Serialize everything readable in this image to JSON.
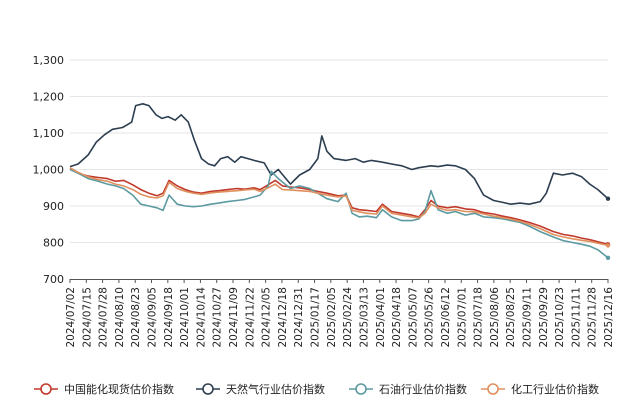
{
  "chart_data": {
    "type": "line",
    "title": "",
    "xlabel": "",
    "ylabel": "",
    "ylim": [
      700,
      1300
    ],
    "yticks": [
      700,
      800,
      900,
      1000,
      1100,
      1200,
      1300
    ],
    "ytick_labels": [
      "700",
      "800",
      "900",
      "1,000",
      "1,100",
      "1,200",
      "1,300"
    ],
    "grid": "horizontal",
    "legend_position": "bottom",
    "x_range": [
      "2024/07/02",
      "2025/12/16"
    ],
    "x_tick_labels": [
      "2024/07/02",
      "2024/07/15",
      "2024/07/28",
      "2024/08/10",
      "2024/08/23",
      "2024/09/05",
      "2024/09/18",
      "2024/10/01",
      "2024/10/14",
      "2024/10/27",
      "2024/11/09",
      "2024/11/22",
      "2024/12/05",
      "2024/12/18",
      "2024/12/31",
      "2025/01/17",
      "2025/02/05",
      "2025/02/24",
      "2025/03/13",
      "2025/04/01",
      "2025/04/18",
      "2025/05/07",
      "2025/05/26",
      "2025/06/12",
      "2025/07/01",
      "2025/07/18",
      "2025/08/06",
      "2025/08/25",
      "2025/09/11",
      "2025/09/29",
      "2025/10/23",
      "2025/11/11",
      "2025/11/28",
      "2025/12/16"
    ],
    "series": [
      {
        "name": "中国能化现货估价指数",
        "color": "#c0392b",
        "points": [
          [
            "2024/07/02",
            1002
          ],
          [
            "2024/07/10",
            990
          ],
          [
            "2024/07/20",
            982
          ],
          [
            "2024/07/30",
            978
          ],
          [
            "2024/08/08",
            975
          ],
          [
            "2024/08/16",
            968
          ],
          [
            "2024/08/24",
            970
          ],
          [
            "2024/09/02",
            958
          ],
          [
            "2024/09/10",
            945
          ],
          [
            "2024/09/18",
            935
          ],
          [
            "2024/09/26",
            928
          ],
          [
            "2024/10/02",
            935
          ],
          [
            "2024/10/08",
            970
          ],
          [
            "2024/10/16",
            955
          ],
          [
            "2024/10/24",
            945
          ],
          [
            "2024/11/01",
            938
          ],
          [
            "2024/11/09",
            935
          ],
          [
            "2024/11/18",
            940
          ],
          [
            "2024/11/26",
            942
          ],
          [
            "2024/12/05",
            945
          ],
          [
            "2024/12/14",
            948
          ],
          [
            "2024/12/22",
            946
          ],
          [
            "2024/12/31",
            950
          ],
          [
            "2025/01/06",
            945
          ],
          [
            "2025/01/14",
            958
          ],
          [
            "2025/01/21",
            970
          ],
          [
            "2025/01/28",
            955
          ],
          [
            "2025/02/05",
            952
          ],
          [
            "2025/02/14",
            950
          ],
          [
            "2025/02/24",
            945
          ],
          [
            "2025/03/04",
            940
          ],
          [
            "2025/03/13",
            935
          ],
          [
            "2025/03/24",
            928
          ],
          [
            "2025/04/01",
            930
          ],
          [
            "2025/04/07",
            895
          ],
          [
            "2025/04/14",
            890
          ],
          [
            "2025/04/22",
            888
          ],
          [
            "2025/05/01",
            885
          ],
          [
            "2025/05/07",
            905
          ],
          [
            "2025/05/16",
            885
          ],
          [
            "2025/05/26",
            880
          ],
          [
            "2025/06/05",
            875
          ],
          [
            "2025/06/12",
            870
          ],
          [
            "2025/06/18",
            890
          ],
          [
            "2025/06/24",
            915
          ],
          [
            "2025/07/01",
            900
          ],
          [
            "2025/07/10",
            895
          ],
          [
            "2025/07/18",
            898
          ],
          [
            "2025/07/28",
            892
          ],
          [
            "2025/08/06",
            890
          ],
          [
            "2025/08/15",
            882
          ],
          [
            "2025/08/25",
            878
          ],
          [
            "2025/09/03",
            872
          ],
          [
            "2025/09/11",
            868
          ],
          [
            "2025/09/20",
            862
          ],
          [
            "2025/09/29",
            855
          ],
          [
            "2025/10/10",
            845
          ],
          [
            "2025/10/23",
            830
          ],
          [
            "2025/11/02",
            822
          ],
          [
            "2025/11/11",
            818
          ],
          [
            "2025/11/20",
            812
          ],
          [
            "2025/11/28",
            808
          ],
          [
            "2025/12/06",
            802
          ],
          [
            "2025/12/16",
            795
          ]
        ]
      },
      {
        "name": "天然气行业估价指数",
        "color": "#2c3e50",
        "points": [
          [
            "2024/07/02",
            1008
          ],
          [
            "2024/07/10",
            1015
          ],
          [
            "2024/07/20",
            1040
          ],
          [
            "2024/07/28",
            1075
          ],
          [
            "2024/08/05",
            1095
          ],
          [
            "2024/08/13",
            1110
          ],
          [
            "2024/08/23",
            1115
          ],
          [
            "2024/09/01",
            1130
          ],
          [
            "2024/09/05",
            1175
          ],
          [
            "2024/09/12",
            1180
          ],
          [
            "2024/09/18",
            1175
          ],
          [
            "2024/09/25",
            1150
          ],
          [
            "2024/10/01",
            1140
          ],
          [
            "2024/10/07",
            1145
          ],
          [
            "2024/10/14",
            1135
          ],
          [
            "2024/10/20",
            1150
          ],
          [
            "2024/10/27",
            1130
          ],
          [
            "2024/11/02",
            1080
          ],
          [
            "2024/11/09",
            1030
          ],
          [
            "2024/11/16",
            1015
          ],
          [
            "2024/11/22",
            1010
          ],
          [
            "2024/11/28",
            1030
          ],
          [
            "2024/12/05",
            1035
          ],
          [
            "2024/12/12",
            1020
          ],
          [
            "2024/12/18",
            1035
          ],
          [
            "2024/12/25",
            1030
          ],
          [
            "2024/12/31",
            1025
          ],
          [
            "2025/01/10",
            1018
          ],
          [
            "2025/01/17",
            985
          ],
          [
            "2025/01/24",
            1000
          ],
          [
            "2025/02/05",
            960
          ],
          [
            "2025/02/14",
            985
          ],
          [
            "2025/02/24",
            1000
          ],
          [
            "2025/03/04",
            1030
          ],
          [
            "2025/03/08",
            1092
          ],
          [
            "2025/03/13",
            1050
          ],
          [
            "2025/03/20",
            1030
          ],
          [
            "2025/04/01",
            1025
          ],
          [
            "2025/04/10",
            1030
          ],
          [
            "2025/04/18",
            1020
          ],
          [
            "2025/04/26",
            1025
          ],
          [
            "2025/05/07",
            1020
          ],
          [
            "2025/05/16",
            1015
          ],
          [
            "2025/05/26",
            1010
          ],
          [
            "2025/06/05",
            1000
          ],
          [
            "2025/06/12",
            1005
          ],
          [
            "2025/06/24",
            1010
          ],
          [
            "2025/07/01",
            1008
          ],
          [
            "2025/07/10",
            1012
          ],
          [
            "2025/07/18",
            1010
          ],
          [
            "2025/07/28",
            1000
          ],
          [
            "2025/08/06",
            975
          ],
          [
            "2025/08/15",
            930
          ],
          [
            "2025/08/25",
            915
          ],
          [
            "2025/09/03",
            910
          ],
          [
            "2025/09/11",
            905
          ],
          [
            "2025/09/20",
            908
          ],
          [
            "2025/09/29",
            905
          ],
          [
            "2025/10/10",
            912
          ],
          [
            "2025/10/16",
            935
          ],
          [
            "2025/10/23",
            990
          ],
          [
            "2025/11/01",
            985
          ],
          [
            "2025/11/11",
            990
          ],
          [
            "2025/11/20",
            980
          ],
          [
            "2025/11/28",
            960
          ],
          [
            "2025/12/06",
            945
          ],
          [
            "2025/12/16",
            920
          ]
        ]
      },
      {
        "name": "石油行业估价指数",
        "color": "#5b9aa0",
        "points": [
          [
            "2024/07/02",
            1000
          ],
          [
            "2024/07/10",
            990
          ],
          [
            "2024/07/20",
            975
          ],
          [
            "2024/07/30",
            968
          ],
          [
            "2024/08/08",
            960
          ],
          [
            "2024/08/16",
            955
          ],
          [
            "2024/08/24",
            948
          ],
          [
            "2024/09/02",
            930
          ],
          [
            "2024/09/10",
            905
          ],
          [
            "2024/09/18",
            900
          ],
          [
            "2024/09/26",
            895
          ],
          [
            "2024/10/02",
            888
          ],
          [
            "2024/10/08",
            930
          ],
          [
            "2024/10/16",
            905
          ],
          [
            "2024/10/24",
            900
          ],
          [
            "2024/11/01",
            898
          ],
          [
            "2024/11/09",
            900
          ],
          [
            "2024/11/18",
            905
          ],
          [
            "2024/11/26",
            908
          ],
          [
            "2024/12/05",
            912
          ],
          [
            "2024/12/14",
            915
          ],
          [
            "2024/12/22",
            918
          ],
          [
            "2024/12/31",
            925
          ],
          [
            "2025/01/06",
            930
          ],
          [
            "2025/01/14",
            955
          ],
          [
            "2025/01/17",
            995
          ],
          [
            "2025/01/24",
            975
          ],
          [
            "2025/02/05",
            948
          ],
          [
            "2025/02/14",
            955
          ],
          [
            "2025/02/24",
            948
          ],
          [
            "2025/03/04",
            935
          ],
          [
            "2025/03/13",
            920
          ],
          [
            "2025/03/24",
            912
          ],
          [
            "2025/04/01",
            935
          ],
          [
            "2025/04/07",
            880
          ],
          [
            "2025/04/14",
            870
          ],
          [
            "2025/04/22",
            872
          ],
          [
            "2025/05/01",
            868
          ],
          [
            "2025/05/07",
            890
          ],
          [
            "2025/05/16",
            870
          ],
          [
            "2025/05/26",
            860
          ],
          [
            "2025/06/05",
            860
          ],
          [
            "2025/06/12",
            865
          ],
          [
            "2025/06/18",
            885
          ],
          [
            "2025/06/24",
            942
          ],
          [
            "2025/07/01",
            890
          ],
          [
            "2025/07/10",
            880
          ],
          [
            "2025/07/18",
            885
          ],
          [
            "2025/07/28",
            875
          ],
          [
            "2025/08/06",
            880
          ],
          [
            "2025/08/15",
            870
          ],
          [
            "2025/08/25",
            868
          ],
          [
            "2025/09/03",
            865
          ],
          [
            "2025/09/11",
            860
          ],
          [
            "2025/09/20",
            855
          ],
          [
            "2025/09/29",
            845
          ],
          [
            "2025/10/10",
            830
          ],
          [
            "2025/10/23",
            815
          ],
          [
            "2025/11/02",
            805
          ],
          [
            "2025/11/11",
            800
          ],
          [
            "2025/11/20",
            795
          ],
          [
            "2025/11/28",
            790
          ],
          [
            "2025/12/06",
            780
          ],
          [
            "2025/12/16",
            758
          ]
        ]
      },
      {
        "name": "化工行业估价指数",
        "color": "#e0905f",
        "points": [
          [
            "2024/07/02",
            1005
          ],
          [
            "2024/07/10",
            992
          ],
          [
            "2024/07/20",
            980
          ],
          [
            "2024/07/30",
            972
          ],
          [
            "2024/08/08",
            968
          ],
          [
            "2024/08/16",
            960
          ],
          [
            "2024/08/24",
            955
          ],
          [
            "2024/09/02",
            945
          ],
          [
            "2024/09/10",
            932
          ],
          [
            "2024/09/18",
            925
          ],
          [
            "2024/09/26",
            922
          ],
          [
            "2024/10/02",
            928
          ],
          [
            "2024/10/08",
            965
          ],
          [
            "2024/10/16",
            948
          ],
          [
            "2024/10/24",
            940
          ],
          [
            "2024/11/01",
            935
          ],
          [
            "2024/11/09",
            932
          ],
          [
            "2024/11/18",
            936
          ],
          [
            "2024/11/26",
            938
          ],
          [
            "2024/12/05",
            940
          ],
          [
            "2024/12/14",
            942
          ],
          [
            "2024/12/22",
            944
          ],
          [
            "2024/12/31",
            946
          ],
          [
            "2025/01/06",
            940
          ],
          [
            "2025/01/14",
            950
          ],
          [
            "2025/01/21",
            960
          ],
          [
            "2025/01/28",
            945
          ],
          [
            "2025/02/05",
            944
          ],
          [
            "2025/02/14",
            942
          ],
          [
            "2025/02/24",
            940
          ],
          [
            "2025/03/04",
            935
          ],
          [
            "2025/03/13",
            930
          ],
          [
            "2025/03/24",
            925
          ],
          [
            "2025/04/01",
            928
          ],
          [
            "2025/04/07",
            888
          ],
          [
            "2025/04/14",
            884
          ],
          [
            "2025/04/22",
            880
          ],
          [
            "2025/05/01",
            878
          ],
          [
            "2025/05/07",
            900
          ],
          [
            "2025/05/16",
            880
          ],
          [
            "2025/05/26",
            875
          ],
          [
            "2025/06/05",
            870
          ],
          [
            "2025/06/12",
            868
          ],
          [
            "2025/06/18",
            880
          ],
          [
            "2025/06/24",
            905
          ],
          [
            "2025/07/01",
            895
          ],
          [
            "2025/07/10",
            888
          ],
          [
            "2025/07/18",
            890
          ],
          [
            "2025/07/28",
            885
          ],
          [
            "2025/08/06",
            884
          ],
          [
            "2025/08/15",
            878
          ],
          [
            "2025/08/25",
            872
          ],
          [
            "2025/09/03",
            868
          ],
          [
            "2025/09/11",
            864
          ],
          [
            "2025/09/20",
            858
          ],
          [
            "2025/09/29",
            850
          ],
          [
            "2025/10/10",
            838
          ],
          [
            "2025/10/23",
            822
          ],
          [
            "2025/11/02",
            815
          ],
          [
            "2025/11/11",
            810
          ],
          [
            "2025/11/20",
            806
          ],
          [
            "2025/11/28",
            803
          ],
          [
            "2025/12/06",
            798
          ],
          [
            "2025/12/16",
            792
          ]
        ]
      }
    ]
  }
}
